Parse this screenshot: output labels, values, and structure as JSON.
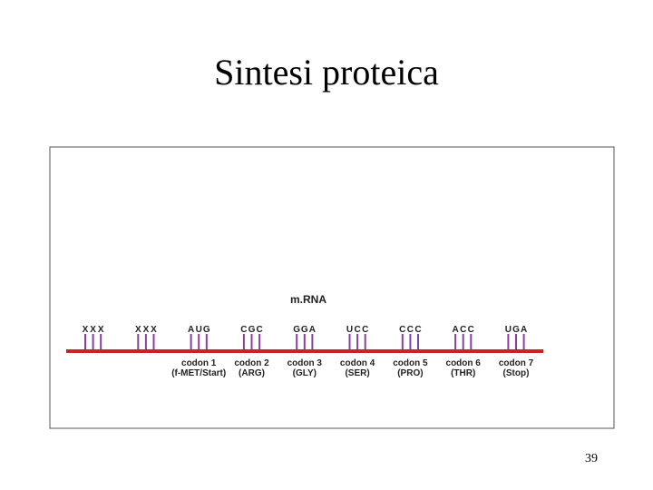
{
  "title": "Sintesi proteica",
  "page_number": "39",
  "diagram": {
    "label": "m.RNA",
    "groups": [
      {
        "bases": [
          "X",
          "X",
          "X"
        ]
      },
      {
        "bases": [
          "X",
          "X",
          "X"
        ]
      },
      {
        "bases": [
          "A",
          "U",
          "G"
        ],
        "codon": "codon 1",
        "amino_acid": "(f-MET/Start)"
      },
      {
        "bases": [
          "C",
          "G",
          "C"
        ],
        "codon": "codon 2",
        "amino_acid": "(ARG)"
      },
      {
        "bases": [
          "G",
          "G",
          "A"
        ],
        "codon": "codon 3",
        "amino_acid": "(GLY)"
      },
      {
        "bases": [
          "U",
          "C",
          "C"
        ],
        "codon": "codon 4",
        "amino_acid": "(SER)"
      },
      {
        "bases": [
          "C",
          "C",
          "C"
        ],
        "codon": "codon 5",
        "amino_acid": "(PRO)"
      },
      {
        "bases": [
          "A",
          "C",
          "C"
        ],
        "codon": "codon 6",
        "amino_acid": "(THR)"
      },
      {
        "bases": [
          "U",
          "G",
          "A"
        ],
        "codon": "codon 7",
        "amino_acid": "(Stop)"
      }
    ]
  }
}
